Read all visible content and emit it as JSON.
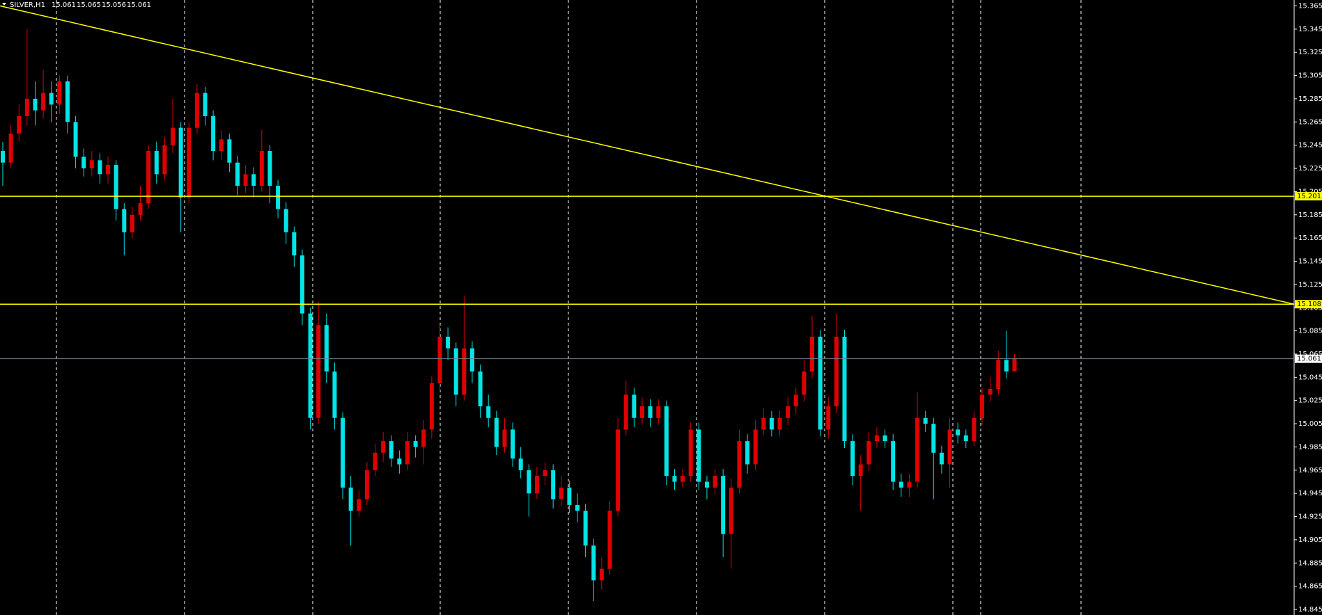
{
  "chart_data": {
    "type": "candlestick",
    "symbol": "SILVER,H1",
    "ohlc": [
      15.061,
      15.065,
      15.056,
      15.061
    ],
    "up_color": "#e00000",
    "down_color": "#00e5e5",
    "ylim": [
      14.845,
      15.365
    ],
    "yticks": [
      15.365,
      15.345,
      15.325,
      15.305,
      15.285,
      15.265,
      15.245,
      15.225,
      15.205,
      15.185,
      15.165,
      15.145,
      15.125,
      15.105,
      15.085,
      15.065,
      15.045,
      15.025,
      15.005,
      14.985,
      14.965,
      14.945,
      14.925,
      14.905,
      14.885,
      14.865,
      14.845
    ],
    "hlines": [
      {
        "value": 15.201,
        "color": "#ffff00"
      },
      {
        "value": 15.108,
        "color": "#ffff00"
      },
      {
        "value": 15.061,
        "color": "#708090"
      }
    ],
    "trendline": {
      "start": 15.365,
      "end": 15.108,
      "color": "#ffff00"
    },
    "open": [
      15.24,
      15.23,
      15.255,
      15.27,
      15.285,
      15.275,
      15.29,
      15.28,
      15.3,
      15.265,
      15.235,
      15.225,
      15.232,
      15.22,
      15.228,
      15.19,
      15.17,
      15.185,
      15.195,
      15.24,
      15.22,
      15.245,
      15.26,
      15.2,
      15.26,
      15.29,
      15.27,
      15.24,
      15.25,
      15.23,
      15.21,
      15.22,
      15.21,
      15.24,
      15.21,
      15.19,
      15.17,
      15.15,
      15.1,
      15.01,
      15.09,
      15.05,
      15.01,
      14.95,
      14.93,
      14.94,
      14.965,
      14.98,
      14.99,
      14.975,
      14.97,
      14.99,
      14.985,
      15.0,
      15.04,
      15.08,
      15.07,
      15.03,
      15.07,
      15.05,
      15.02,
      15.01,
      14.985,
      15.0,
      14.975,
      14.965,
      14.945,
      14.96,
      14.965,
      14.94,
      14.95,
      14.935,
      14.93,
      14.9,
      14.87,
      14.88,
      14.93,
      15.0,
      15.03,
      15.01,
      15.02,
      15.01,
      15.02,
      14.96,
      14.955,
      14.96,
      15.0,
      14.955,
      14.95,
      14.96,
      14.91,
      14.95,
      14.99,
      14.97,
      15.0,
      15.01,
      15.0,
      15.01,
      15.02,
      15.03,
      15.05,
      15.08,
      15.0,
      15.02,
      15.08,
      14.99,
      14.96,
      14.97,
      14.99,
      14.995,
      14.99,
      14.955,
      14.95,
      14.955,
      15.01,
      15.005,
      14.98,
      14.97,
      15.0,
      14.995,
      14.99,
      15.01,
      15.03,
      15.035,
      15.06,
      15.05
    ],
    "high": [
      15.248,
      15.262,
      15.28,
      15.345,
      15.3,
      15.31,
      15.3,
      15.305,
      15.305,
      15.27,
      15.242,
      15.24,
      15.238,
      15.235,
      15.232,
      15.195,
      15.192,
      15.21,
      15.245,
      15.248,
      15.252,
      15.285,
      15.265,
      15.265,
      15.298,
      15.295,
      15.275,
      15.258,
      15.255,
      15.236,
      15.228,
      15.226,
      15.258,
      15.245,
      15.215,
      15.196,
      15.175,
      15.155,
      15.105,
      15.11,
      15.1,
      15.058,
      15.015,
      14.96,
      14.948,
      14.972,
      14.988,
      14.998,
      14.995,
      14.982,
      14.998,
      14.995,
      15.008,
      15.046,
      15.09,
      15.088,
      15.075,
      15.115,
      15.076,
      15.056,
      15.03,
      15.016,
      15.01,
      15.006,
      14.985,
      14.97,
      14.968,
      14.972,
      14.97,
      14.96,
      14.956,
      14.945,
      14.936,
      14.906,
      14.89,
      14.938,
      15.01,
      15.042,
      15.036,
      15.028,
      15.026,
      15.026,
      15.025,
      14.966,
      14.966,
      15.006,
      15.006,
      14.96,
      14.966,
      14.966,
      14.958,
      15.0,
      14.996,
      15.008,
      15.018,
      15.016,
      15.016,
      15.028,
      15.036,
      15.06,
      15.098,
      15.086,
      15.028,
      15.1,
      15.086,
      14.996,
      14.978,
      14.998,
      15.002,
      15.0,
      14.996,
      14.962,
      14.962,
      15.032,
      15.016,
      15.01,
      14.986,
      15.01,
      15.006,
      15.0,
      15.016,
      15.036,
      15.045,
      15.068,
      15.085,
      15.065
    ],
    "low": [
      15.21,
      15.225,
      15.248,
      15.262,
      15.262,
      15.268,
      15.265,
      15.272,
      15.255,
      15.225,
      15.218,
      15.218,
      15.212,
      15.212,
      15.18,
      15.15,
      15.165,
      15.18,
      15.19,
      15.212,
      15.215,
      15.238,
      15.17,
      15.195,
      15.255,
      15.262,
      15.232,
      15.232,
      15.222,
      15.202,
      15.204,
      15.2,
      15.205,
      15.195,
      15.182,
      15.16,
      15.14,
      15.09,
      15.0,
      15.005,
      15.04,
      15.0,
      14.94,
      14.9,
      14.925,
      14.935,
      14.96,
      14.972,
      14.968,
      14.962,
      14.965,
      14.976,
      14.97,
      14.992,
      15.032,
      15.06,
      15.02,
      15.025,
      15.04,
      15.01,
      15.002,
      14.978,
      14.98,
      14.968,
      14.958,
      14.925,
      14.94,
      14.952,
      14.932,
      14.934,
      14.928,
      14.92,
      14.89,
      14.852,
      14.862,
      14.875,
      14.925,
      14.995,
      15.002,
      15.004,
      15.002,
      15.004,
      14.952,
      14.948,
      14.95,
      14.955,
      14.948,
      14.94,
      14.944,
      14.89,
      14.88,
      14.945,
      14.962,
      14.965,
      14.995,
      14.994,
      14.994,
      15.004,
      15.014,
      15.024,
      15.044,
      14.994,
      14.992,
      15.014,
      14.984,
      14.952,
      14.93,
      14.964,
      14.984,
      14.984,
      14.948,
      14.942,
      14.942,
      14.95,
      14.998,
      14.94,
      14.962,
      14.95,
      14.988,
      14.984,
      14.986,
      15.004,
      15.024,
      15.03,
      15.044,
      15.05
    ],
    "close": [
      15.23,
      15.255,
      15.27,
      15.285,
      15.275,
      15.29,
      15.28,
      15.3,
      15.265,
      15.235,
      15.225,
      15.232,
      15.22,
      15.228,
      15.19,
      15.17,
      15.185,
      15.195,
      15.24,
      15.22,
      15.245,
      15.26,
      15.2,
      15.26,
      15.29,
      15.27,
      15.24,
      15.25,
      15.23,
      15.21,
      15.22,
      15.21,
      15.24,
      15.21,
      15.19,
      15.17,
      15.15,
      15.1,
      15.01,
      15.09,
      15.05,
      15.01,
      14.95,
      14.93,
      14.94,
      14.965,
      14.98,
      14.99,
      14.975,
      14.97,
      14.99,
      14.985,
      15.0,
      15.04,
      15.08,
      15.07,
      15.03,
      15.07,
      15.05,
      15.02,
      15.01,
      14.985,
      15.0,
      14.975,
      14.965,
      14.945,
      14.96,
      14.965,
      14.94,
      14.95,
      14.935,
      14.93,
      14.9,
      14.87,
      14.88,
      14.93,
      15.0,
      15.03,
      15.01,
      15.02,
      15.01,
      15.02,
      14.96,
      14.955,
      14.96,
      15.0,
      14.955,
      14.95,
      14.96,
      14.91,
      14.95,
      14.99,
      14.97,
      15.0,
      15.01,
      15.0,
      15.01,
      15.02,
      15.03,
      15.05,
      15.08,
      15.0,
      15.02,
      15.08,
      14.99,
      14.96,
      14.97,
      14.99,
      14.995,
      14.99,
      14.955,
      14.95,
      14.955,
      15.01,
      15.005,
      14.98,
      14.97,
      15.0,
      14.995,
      14.99,
      15.01,
      15.03,
      15.035,
      15.06,
      15.05,
      15.061
    ]
  }
}
